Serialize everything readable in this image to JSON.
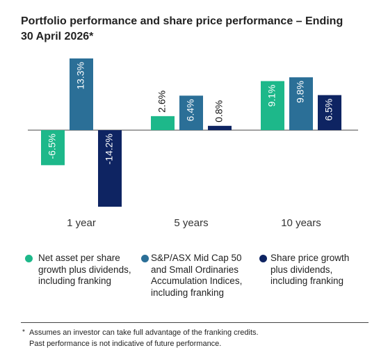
{
  "chart_data": {
    "type": "bar",
    "title": "Portfolio performance and share price performance – Ending 30 April 2026*",
    "categories": [
      "1 year",
      "5 years",
      "10 years"
    ],
    "series": [
      {
        "name": "Net asset per share growth plus dividends, including franking",
        "color": "#1db88a",
        "values": [
          -6.5,
          2.6,
          9.1
        ],
        "value_labels": [
          "-6.5%",
          "2.6%",
          "9.1%"
        ]
      },
      {
        "name": "S&P/ASX Mid Cap 50 and Small Ordinaries Accumulation Indices, including franking",
        "color": "#2b6f97",
        "values": [
          13.3,
          6.4,
          9.8
        ],
        "value_labels": [
          "13.3%",
          "6.4%",
          "9.8%"
        ]
      },
      {
        "name": "Share price growth plus dividends, including franking",
        "color": "#0e2462",
        "values": [
          -14.2,
          0.8,
          6.5
        ],
        "value_labels": [
          "-14.2%",
          "0.8%",
          "6.5%"
        ]
      }
    ]
  },
  "footnote": {
    "marker": "*",
    "lines": [
      "Assumes an investor can take full advantage of the franking credits.",
      "Past performance is not indicative of future performance."
    ]
  }
}
